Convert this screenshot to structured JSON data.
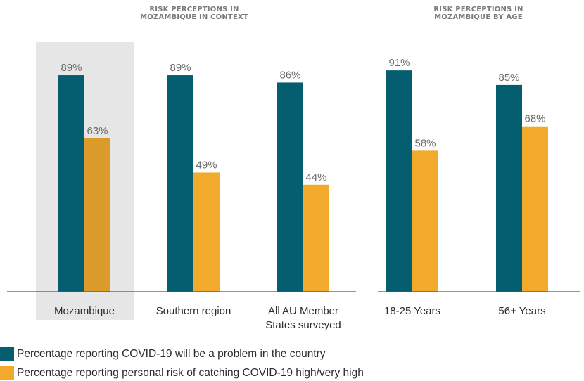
{
  "colors": {
    "series_1": "#045e6f",
    "series_2": "#f1aa2c",
    "series_2_highlight": "#dc9a2a",
    "highlight_bg": "#e6e6e6",
    "axis": "#555555"
  },
  "legend": [
    {
      "label": "Percentage reporting COVID-19 will be a problem in the country",
      "color": "#045e6f"
    },
    {
      "label": "Percentage reporting personal risk of catching COVID-19 high/very high",
      "color": "#f1aa2c"
    }
  ],
  "chart_data": [
    {
      "type": "bar",
      "title": "RISK PERCEPTIONS IN MOZAMBIQUE IN CONTEXT",
      "title_lines": [
        "RISK PERCEPTIONS IN",
        "MOZAMBIQUE IN CONTEXT"
      ],
      "categories": [
        "Mozambique",
        "Southern region",
        "All AU Member States surveyed"
      ],
      "category_lines": [
        [
          "Mozambique"
        ],
        [
          "Southern region"
        ],
        [
          "All AU Member",
          "States surveyed"
        ]
      ],
      "highlighted_category": "Mozambique",
      "series": [
        {
          "name": "Percentage reporting COVID-19 will be a problem in the country",
          "values": [
            89,
            89,
            86
          ],
          "labels": [
            "89%",
            "89%",
            "86%"
          ]
        },
        {
          "name": "Percentage reporting personal risk of catching COVID-19 high/very high",
          "values": [
            63,
            49,
            44
          ],
          "labels": [
            "63%",
            "49%",
            "44%"
          ]
        }
      ],
      "ylim": [
        0,
        100
      ]
    },
    {
      "type": "bar",
      "title": "RISK PERCEPTIONS IN MOZAMBIQUE BY AGE",
      "title_lines": [
        "RISK PERCEPTIONS IN",
        "MOZAMBIQUE BY AGE"
      ],
      "categories": [
        "18-25 Years",
        "56+ Years"
      ],
      "category_lines": [
        [
          "18-25 Years"
        ],
        [
          "56+ Years"
        ]
      ],
      "series": [
        {
          "name": "Percentage reporting COVID-19 will be a problem in the country",
          "values": [
            91,
            85
          ],
          "labels": [
            "91%",
            "85%"
          ]
        },
        {
          "name": "Percentage reporting personal risk of catching COVID-19 high/very high",
          "values": [
            58,
            68
          ],
          "labels": [
            "58%",
            "68%"
          ]
        }
      ],
      "ylim": [
        0,
        100
      ]
    }
  ]
}
